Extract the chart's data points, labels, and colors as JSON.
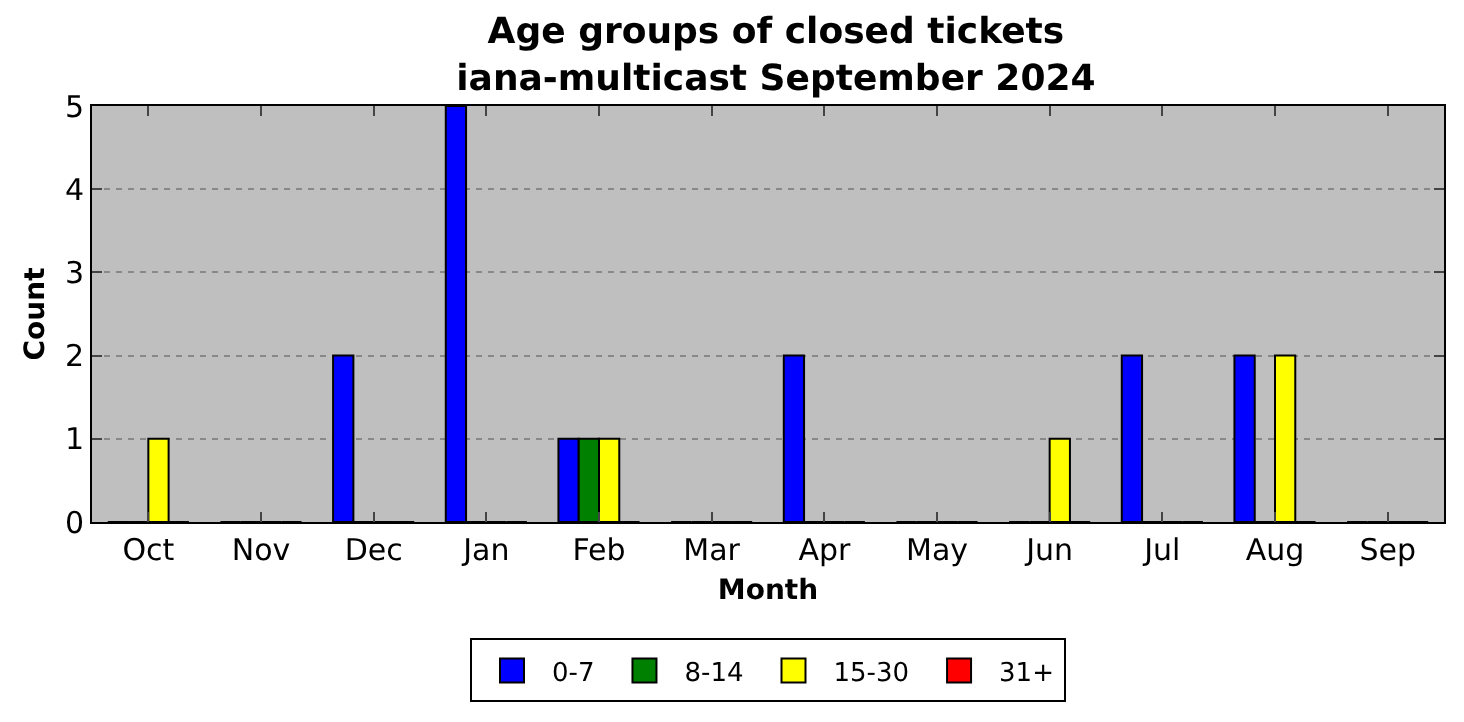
{
  "chart_data": {
    "type": "bar",
    "title": "Age groups of closed tickets\niana-multicast September 2024",
    "xlabel": "Month",
    "ylabel": "Count",
    "categories": [
      "Oct",
      "Nov",
      "Dec",
      "Jan",
      "Feb",
      "Mar",
      "Apr",
      "May",
      "Jun",
      "Jul",
      "Aug",
      "Sep"
    ],
    "series": [
      {
        "name": "0-7",
        "color": "#0000ff",
        "values": [
          0,
          0,
          2,
          5,
          1,
          0,
          2,
          0,
          0,
          2,
          2,
          0
        ]
      },
      {
        "name": "8-14",
        "color": "#008000",
        "values": [
          0,
          0,
          0,
          0,
          1,
          0,
          0,
          0,
          0,
          0,
          0,
          0
        ]
      },
      {
        "name": "15-30",
        "color": "#ffff00",
        "values": [
          1,
          0,
          0,
          0,
          1,
          0,
          0,
          0,
          1,
          0,
          2,
          0
        ]
      },
      {
        "name": "31+",
        "color": "#ff0000",
        "values": [
          0,
          0,
          0,
          0,
          0,
          0,
          0,
          0,
          0,
          0,
          0,
          0
        ]
      }
    ],
    "ylim": [
      0,
      5
    ],
    "yticks": [
      0,
      1,
      2,
      3,
      4,
      5
    ],
    "grid": "y",
    "legend": "bottom"
  }
}
